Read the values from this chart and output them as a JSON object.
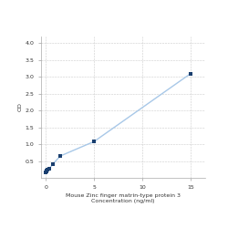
{
  "title": "",
  "xlabel_line1": "Mouse Zinc finger matrin-type protein 3",
  "xlabel_line2": "Concentration (ng/ml)",
  "ylabel": "OD",
  "x_data": [
    0.0,
    0.047,
    0.094,
    0.188,
    0.375,
    0.75,
    1.5,
    5.0,
    15.0
  ],
  "y_data": [
    0.175,
    0.195,
    0.215,
    0.235,
    0.28,
    0.42,
    0.65,
    1.08,
    3.1
  ],
  "xlim": [
    -0.5,
    16.5
  ],
  "ylim": [
    0.0,
    4.2
  ],
  "yticks": [
    0.5,
    1.0,
    1.5,
    2.0,
    2.5,
    3.0,
    3.5,
    4.0
  ],
  "xticks": [
    0,
    5,
    10,
    15
  ],
  "line_color": "#a8c8e8",
  "marker_color": "#1a3f6f",
  "marker_size": 3.5,
  "line_width": 1.0,
  "background_color": "#ffffff",
  "grid_color": "#cccccc",
  "font_size_ticks": 4.5,
  "font_size_labels": 4.5
}
